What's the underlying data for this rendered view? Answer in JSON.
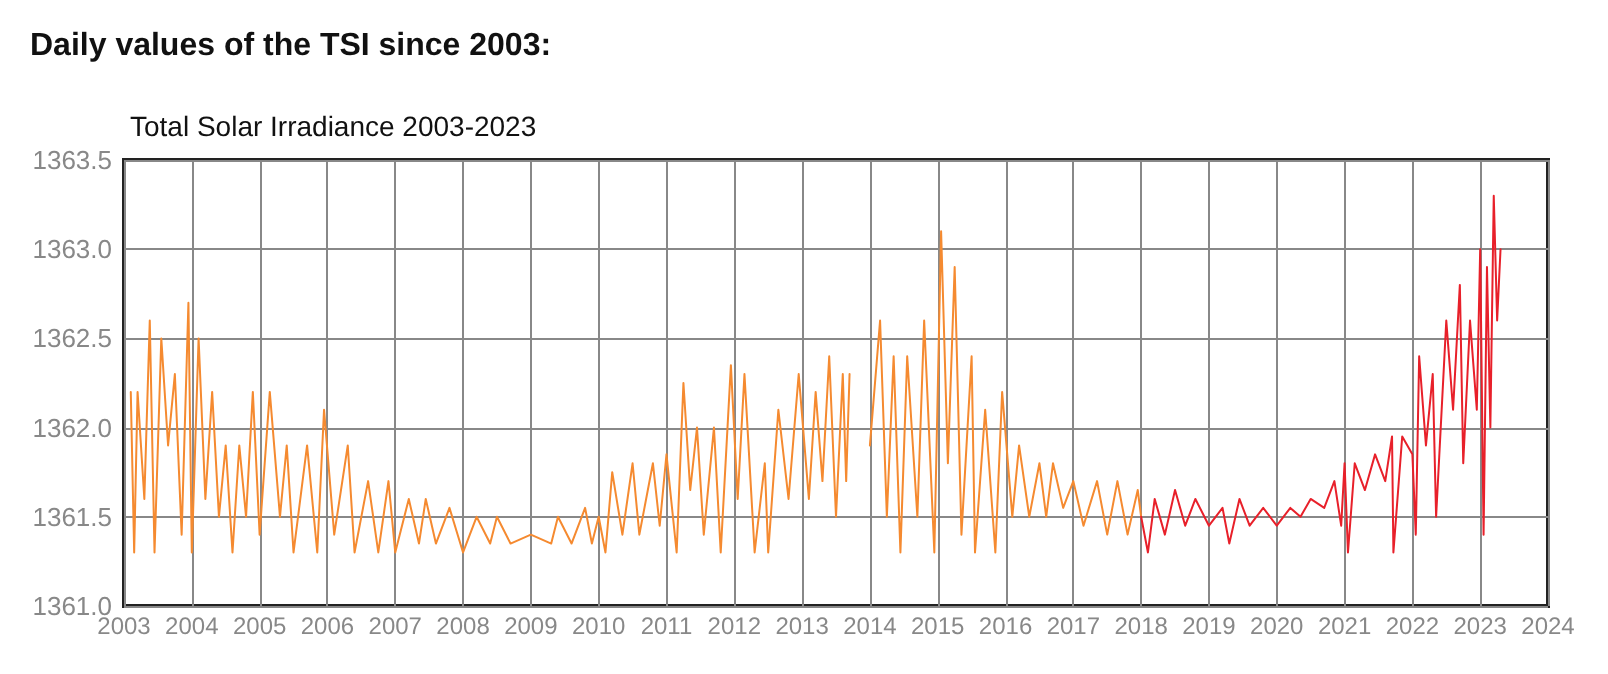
{
  "chart_data": {
    "type": "line",
    "title": "Daily values of the TSI since 2003:",
    "subtitle": "Total Solar Irradiance 2003-2023",
    "xlim": [
      2003,
      2024
    ],
    "xticks": [
      2003,
      2004,
      2005,
      2006,
      2007,
      2008,
      2009,
      2010,
      2011,
      2012,
      2013,
      2014,
      2015,
      2016,
      2017,
      2018,
      2019,
      2020,
      2021,
      2022,
      2023,
      2024
    ],
    "ylim": [
      1361,
      1363.5
    ],
    "yticks": [
      {
        "value": 1361,
        "label": "1361.0"
      },
      1361.5,
      {
        "value": 1362,
        "label": "1362.0"
      },
      1362.5,
      {
        "value": 1363,
        "label": "1363.0"
      },
      1363.5
    ],
    "grid": true,
    "marker": "none",
    "line_style": "solid",
    "series": [
      {
        "color": "#f58a30",
        "x": [
          2003.1,
          2003.15,
          2003.2,
          2003.3,
          2003.38,
          2003.45,
          2003.55,
          2003.65,
          2003.75,
          2003.85,
          2003.95,
          2004.0,
          2004.1,
          2004.2,
          2004.3,
          2004.4,
          2004.5,
          2004.6,
          2004.7,
          2004.8,
          2004.9,
          2005.0,
          2005.15,
          2005.3,
          2005.4,
          2005.5,
          2005.7,
          2005.85,
          2005.95,
          2006.1,
          2006.3,
          2006.4,
          2006.6,
          2006.75,
          2006.9,
          2007.0,
          2007.2,
          2007.35,
          2007.45,
          2007.6,
          2007.8,
          2008.0,
          2008.2,
          2008.4,
          2008.5,
          2008.7,
          2009.0,
          2009.3,
          2009.4,
          2009.6,
          2009.8,
          2009.9,
          2010.0,
          2010.1,
          2010.2,
          2010.35,
          2010.5,
          2010.6,
          2010.8,
          2010.9,
          2011.0,
          2011.15,
          2011.25,
          2011.35,
          2011.45,
          2011.55,
          2011.7,
          2011.8,
          2011.95,
          2012.05,
          2012.15,
          2012.3,
          2012.45,
          2012.5,
          2012.65,
          2012.8,
          2012.95,
          2013.1,
          2013.2,
          2013.3,
          2013.4,
          2013.5,
          2013.6,
          2013.65,
          2013.7,
          2013.85,
          2014.0,
          2014.15,
          2014.25,
          2014.35,
          2014.45,
          2014.55,
          2014.7,
          2014.8,
          2014.95,
          2015.05,
          2015.15,
          2015.25,
          2015.35,
          2015.5,
          2015.55,
          2015.7,
          2015.85,
          2015.95,
          2016.1,
          2016.2,
          2016.35,
          2016.5,
          2016.6,
          2016.7,
          2016.85,
          2017.0,
          2017.15,
          2017.35,
          2017.5,
          2017.65,
          2017.8,
          2017.95,
          2018.0
        ],
        "values": [
          1362.2,
          1361.3,
          1362.2,
          1361.6,
          1362.6,
          1361.3,
          1362.5,
          1361.9,
          1362.3,
          1361.4,
          1362.7,
          1361.3,
          1362.5,
          1361.6,
          1362.2,
          1361.5,
          1361.9,
          1361.3,
          1361.9,
          1361.5,
          1362.2,
          1361.4,
          1362.2,
          1361.5,
          1361.9,
          1361.3,
          1361.9,
          1361.3,
          1362.1,
          1361.4,
          1361.9,
          1361.3,
          1361.7,
          1361.3,
          1361.7,
          1361.3,
          1361.6,
          1361.35,
          1361.6,
          1361.35,
          1361.55,
          1361.3,
          1361.5,
          1361.35,
          1361.5,
          1361.35,
          1361.4,
          1361.35,
          1361.5,
          1361.35,
          1361.55,
          1361.35,
          1361.5,
          1361.3,
          1361.75,
          1361.4,
          1361.8,
          1361.4,
          1361.8,
          1361.45,
          1361.85,
          1361.3,
          1362.25,
          1361.65,
          1362.0,
          1361.4,
          1362.0,
          1361.3,
          1362.35,
          1361.6,
          1362.3,
          1361.3,
          1361.8,
          1361.3,
          1362.1,
          1361.6,
          1362.3,
          1361.6,
          1362.2,
          1361.7,
          1362.4,
          1361.5,
          1362.3,
          1361.7,
          1362.3,
          null,
          1361.9,
          1362.6,
          1361.5,
          1362.4,
          1361.3,
          1362.4,
          1361.5,
          1362.6,
          1361.3,
          1363.1,
          1361.8,
          1362.9,
          1361.4,
          1362.4,
          1361.3,
          1362.1,
          1361.3,
          1362.2,
          1361.5,
          1361.9,
          1361.5,
          1361.8,
          1361.5,
          1361.8,
          1361.55,
          1361.7,
          1361.45,
          1361.7,
          1361.4,
          1361.7,
          1361.4,
          1361.65,
          1361.5
        ]
      },
      {
        "color": "#e8202a",
        "x": [
          2018.0,
          2018.1,
          2018.2,
          2018.35,
          2018.5,
          2018.65,
          2018.8,
          2019.0,
          2019.2,
          2019.3,
          2019.45,
          2019.6,
          2019.8,
          2020.0,
          2020.2,
          2020.35,
          2020.5,
          2020.7,
          2020.85,
          2020.95,
          2021.0,
          2021.05,
          2021.15,
          2021.3,
          2021.45,
          2021.6,
          2021.7,
          2021.72,
          2021.85,
          2022.0,
          2022.05,
          2022.1,
          2022.2,
          2022.3,
          2022.35,
          2022.5,
          2022.6,
          2022.7,
          2022.75,
          2022.85,
          2022.95,
          2023.0,
          2023.05,
          2023.1,
          2023.15,
          2023.2,
          2023.25,
          2023.3
        ],
        "values": [
          1361.5,
          1361.3,
          1361.6,
          1361.4,
          1361.65,
          1361.45,
          1361.6,
          1361.45,
          1361.55,
          1361.35,
          1361.6,
          1361.45,
          1361.55,
          1361.45,
          1361.55,
          1361.5,
          1361.6,
          1361.55,
          1361.7,
          1361.45,
          1361.8,
          1361.3,
          1361.8,
          1361.65,
          1361.85,
          1361.7,
          1361.95,
          1361.3,
          1361.95,
          1361.85,
          1361.4,
          1362.4,
          1361.9,
          1362.3,
          1361.5,
          1362.6,
          1362.1,
          1362.8,
          1361.8,
          1362.6,
          1362.1,
          1363.0,
          1361.4,
          1362.9,
          1362.0,
          1363.3,
          1362.6,
          1363.0
        ]
      }
    ]
  }
}
